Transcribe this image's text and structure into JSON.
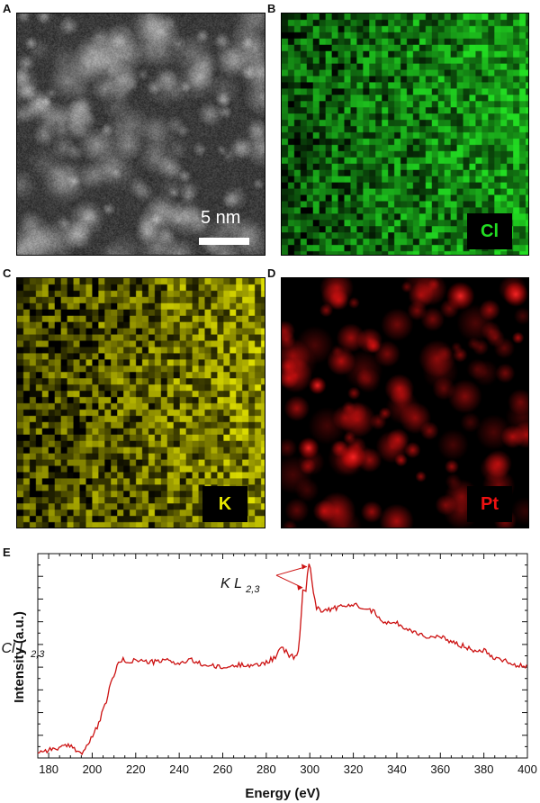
{
  "panels": {
    "A": {
      "letter": "A",
      "scale_label": "5 nm"
    },
    "B": {
      "letter": "B",
      "element": "Cl",
      "color": "#22dd22"
    },
    "C": {
      "letter": "C",
      "element": "K",
      "color": "#e8e800"
    },
    "D": {
      "letter": "D",
      "element": "Pt",
      "color": "#ee1111"
    },
    "E": {
      "letter": "E"
    }
  },
  "chart_data": {
    "type": "line",
    "xlabel": "Energy (eV)",
    "ylabel": "Intensity (a.u.)",
    "xlim": [
      175,
      400
    ],
    "ylim": [
      0,
      1
    ],
    "x_ticks": [
      180,
      200,
      220,
      240,
      260,
      280,
      300,
      320,
      340,
      360,
      380,
      400
    ],
    "y_ticks_labeled": false,
    "line_color": "#cc1111",
    "annotations": [
      {
        "text_main": "Cl L",
        "text_sub": "2,3",
        "x": 212,
        "y": 0.48
      },
      {
        "text_main": "K L",
        "text_sub": "2,3",
        "x": 297,
        "y": 0.85
      }
    ],
    "series": [
      {
        "x": [
          175,
          180,
          185,
          190,
          193,
          195,
          197,
          200,
          203,
          206,
          209,
          212,
          214,
          216,
          220,
          225,
          230,
          235,
          240,
          245,
          250,
          255,
          260,
          265,
          270,
          275,
          280,
          284,
          287,
          289,
          291,
          293,
          295,
          297,
          298,
          299,
          300,
          301,
          303,
          306,
          310,
          315,
          320,
          325,
          330,
          335,
          340,
          345,
          350,
          355,
          360,
          365,
          370,
          375,
          380,
          385,
          390,
          395,
          400
        ],
        "y": [
          0.03,
          0.04,
          0.05,
          0.06,
          0.04,
          0.02,
          0.05,
          0.1,
          0.17,
          0.26,
          0.38,
          0.46,
          0.48,
          0.47,
          0.48,
          0.47,
          0.47,
          0.48,
          0.46,
          0.48,
          0.46,
          0.45,
          0.44,
          0.45,
          0.46,
          0.45,
          0.47,
          0.49,
          0.54,
          0.52,
          0.5,
          0.49,
          0.53,
          0.85,
          0.8,
          0.92,
          0.95,
          0.86,
          0.74,
          0.72,
          0.73,
          0.74,
          0.75,
          0.74,
          0.71,
          0.66,
          0.66,
          0.63,
          0.61,
          0.59,
          0.59,
          0.57,
          0.55,
          0.53,
          0.53,
          0.49,
          0.48,
          0.45,
          0.45
        ]
      }
    ]
  }
}
